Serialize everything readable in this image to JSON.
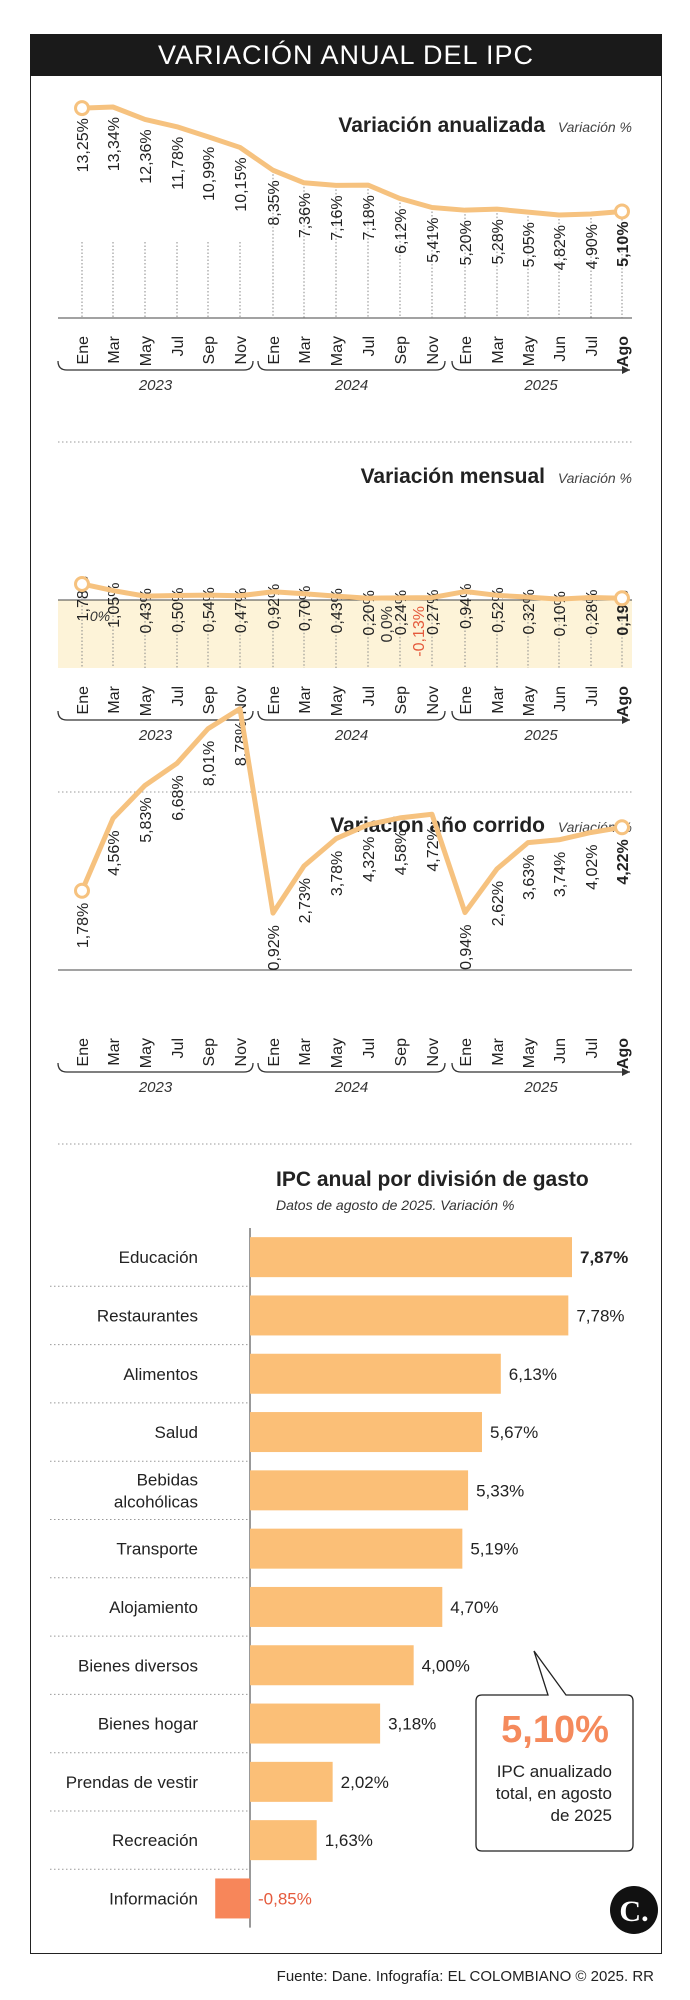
{
  "header": {
    "title": "VARIACIÓN ANUAL DEL IPC"
  },
  "colors": {
    "line": "#f6c27f",
    "bar": "#fbbf77",
    "neg_bar": "#f7865a",
    "neg_text": "#e55a3c",
    "callout_value": "#f58a5c",
    "band": "#fdf3d8"
  },
  "months": [
    "Ene",
    "Mar",
    "May",
    "Jul",
    "Sep",
    "Nov",
    "Ene",
    "Mar",
    "May",
    "Jul",
    "Sep",
    "Nov",
    "Ene",
    "Mar",
    "May",
    "Jun",
    "Jul",
    "Ago"
  ],
  "years": [
    "2023",
    "2024",
    "2025"
  ],
  "chart_data": [
    {
      "type": "line",
      "title": "Variación anualizada",
      "unit": "Variación %",
      "categories": [
        "Ene",
        "Mar",
        "May",
        "Jul",
        "Sep",
        "Nov",
        "Ene",
        "Mar",
        "May",
        "Jul",
        "Sep",
        "Nov",
        "Ene",
        "Mar",
        "May",
        "Jun",
        "Jul",
        "Ago"
      ],
      "values": [
        13.25,
        13.34,
        12.36,
        11.78,
        10.99,
        10.15,
        8.35,
        7.36,
        7.16,
        7.18,
        6.12,
        5.41,
        5.2,
        5.28,
        5.05,
        4.82,
        4.9,
        5.1
      ],
      "labels": [
        "13,25%",
        "13,34%",
        "12,36%",
        "11,78%",
        "10,99%",
        "10,15%",
        "8,35%",
        "7,36%",
        "7,16%",
        "7,18%",
        "6,12%",
        "5,41%",
        "5,20%",
        "5,28%",
        "5,05%",
        "4,82%",
        "4,90%",
        "5,10%"
      ],
      "ylim": [
        0,
        14
      ]
    },
    {
      "type": "line",
      "title": "Variación mensual",
      "unit": "Variación %",
      "categories": [
        "Ene",
        "Mar",
        "May",
        "Jul",
        "Sep",
        "Nov",
        "Ene",
        "Mar",
        "May",
        "Jul",
        "Sep",
        "Nov",
        "Ene",
        "Mar",
        "May",
        "Jun",
        "Jul",
        "Ago"
      ],
      "values": [
        1.78,
        1.05,
        0.43,
        0.5,
        0.54,
        0.47,
        0.92,
        0.7,
        0.43,
        0.2,
        0.24,
        0.27,
        0.94,
        0.52,
        0.32,
        0.1,
        0.28,
        0.19
      ],
      "labels": [
        "1,78%",
        "1,05%",
        "0,43%",
        "0,50%",
        "0,54%",
        "0,47%",
        "0,92%",
        "0,70%",
        "0,43%",
        "0,20%",
        "0,24%",
        "0,27%",
        "0,94%",
        "0,52%",
        "0,32%",
        "0,10%",
        "0,28%",
        "0,19%"
      ],
      "zero_label": "0%",
      "extra_labels": [
        "0,0%",
        "-0,13%"
      ]
    },
    {
      "type": "line",
      "title": "Variación año corrido",
      "unit": "Variación %",
      "categories": [
        "Ene",
        "Mar",
        "May",
        "Jul",
        "Sep",
        "Nov",
        "Ene",
        "Mar",
        "May",
        "Jul",
        "Sep",
        "Nov",
        "Ene",
        "Mar",
        "May",
        "Jun",
        "Jul",
        "Ago"
      ],
      "values": [
        1.78,
        4.56,
        5.83,
        6.68,
        8.01,
        8.78,
        0.92,
        2.73,
        3.78,
        4.32,
        4.58,
        4.72,
        0.94,
        2.62,
        3.63,
        3.74,
        4.02,
        4.22
      ],
      "labels": [
        "1,78%",
        "4,56%",
        "5,83%",
        "6,68%",
        "8,01%",
        "8,78%",
        "0,92%",
        "2,73%",
        "3,78%",
        "4,32%",
        "4,58%",
        "4,72%",
        "0,94%",
        "2,62%",
        "3,63%",
        "3,74%",
        "4,02%",
        "4,22%"
      ],
      "ylim": [
        0,
        9.5
      ]
    },
    {
      "type": "bar",
      "orientation": "horizontal",
      "title": "IPC anual por división de gasto",
      "subtitle": "Datos de agosto de 2025. Variación %",
      "categories": [
        "Educación",
        "Restaurantes",
        "Alimentos",
        "Salud",
        "Bebidas alcohólicas",
        "Transporte",
        "Alojamiento",
        "Bienes diversos",
        "Bienes hogar",
        "Prendas de vestir",
        "Recreación",
        "Información"
      ],
      "values": [
        7.87,
        7.78,
        6.13,
        5.67,
        5.33,
        5.19,
        4.7,
        4.0,
        3.18,
        2.02,
        1.63,
        -0.85
      ],
      "labels": [
        "7,87%",
        "7,78%",
        "6,13%",
        "5,67%",
        "5,33%",
        "5,19%",
        "4,70%",
        "4,00%",
        "3,18%",
        "2,02%",
        "1,63%",
        "-0,85%"
      ]
    }
  ],
  "callout": {
    "value": "5,10%",
    "text_lines": [
      "IPC anualizado",
      "total, en agosto",
      "de 2025"
    ]
  },
  "footer": {
    "source": "Fuente: Dane. Infografía: EL COLOMBIANO © 2025. RR"
  },
  "logo": {
    "letter": "C."
  }
}
